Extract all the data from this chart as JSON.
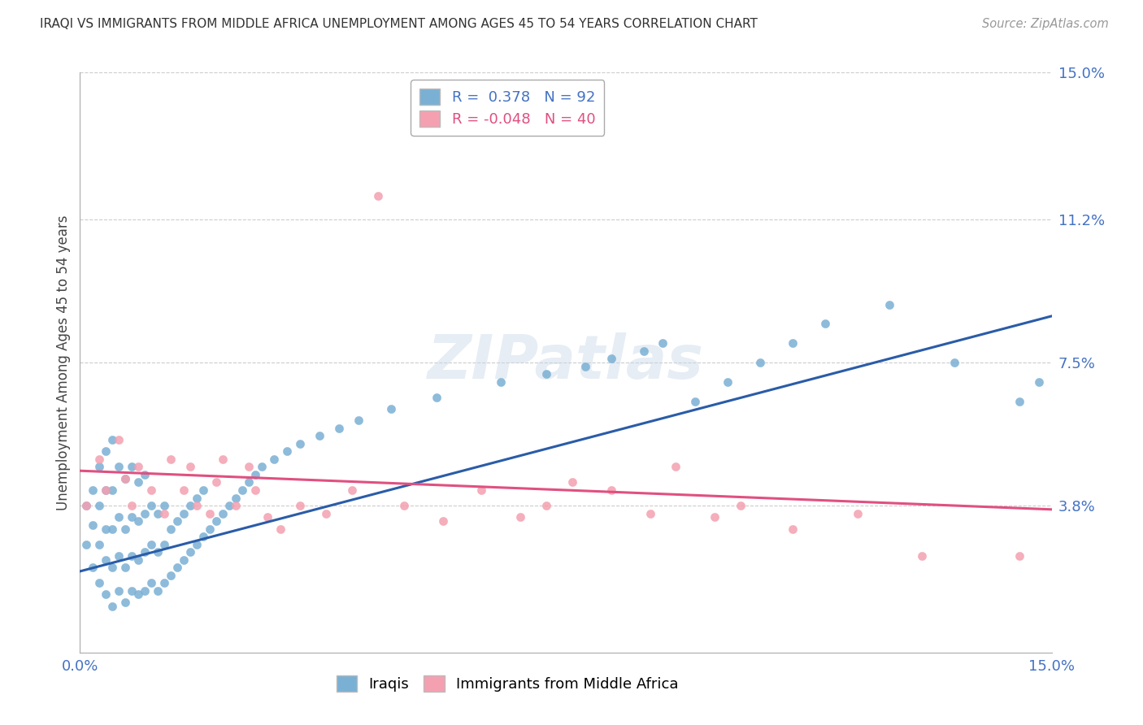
{
  "title": "IRAQI VS IMMIGRANTS FROM MIDDLE AFRICA UNEMPLOYMENT AMONG AGES 45 TO 54 YEARS CORRELATION CHART",
  "source": "Source: ZipAtlas.com",
  "ylabel": "Unemployment Among Ages 45 to 54 years",
  "xlim": [
    0.0,
    0.15
  ],
  "ylim": [
    0.0,
    0.15
  ],
  "ytick_values": [
    0.038,
    0.075,
    0.112,
    0.15
  ],
  "hgrid_values": [
    0.038,
    0.075,
    0.112,
    0.15
  ],
  "background_color": "#ffffff",
  "legend_iraqis": "Iraqis",
  "legend_immigrants": "Immigrants from Middle Africa",
  "r_iraqis": 0.378,
  "n_iraqis": 92,
  "r_immigrants": -0.048,
  "n_immigrants": 40,
  "iraqis_color": "#7ab0d4",
  "immigrants_color": "#f4a0b0",
  "iraqis_line_color": "#2a5ca8",
  "immigrants_line_color": "#e05080",
  "blue_line": [
    0.0,
    0.021,
    0.15,
    0.087
  ],
  "pink_line": [
    0.0,
    0.047,
    0.15,
    0.037
  ],
  "iraqis_x": [
    0.001,
    0.001,
    0.002,
    0.002,
    0.002,
    0.003,
    0.003,
    0.003,
    0.003,
    0.004,
    0.004,
    0.004,
    0.004,
    0.004,
    0.005,
    0.005,
    0.005,
    0.005,
    0.005,
    0.006,
    0.006,
    0.006,
    0.006,
    0.007,
    0.007,
    0.007,
    0.007,
    0.008,
    0.008,
    0.008,
    0.008,
    0.009,
    0.009,
    0.009,
    0.009,
    0.01,
    0.01,
    0.01,
    0.01,
    0.011,
    0.011,
    0.011,
    0.012,
    0.012,
    0.012,
    0.013,
    0.013,
    0.013,
    0.014,
    0.014,
    0.015,
    0.015,
    0.016,
    0.016,
    0.017,
    0.017,
    0.018,
    0.018,
    0.019,
    0.019,
    0.02,
    0.021,
    0.022,
    0.023,
    0.024,
    0.025,
    0.026,
    0.027,
    0.028,
    0.03,
    0.032,
    0.034,
    0.037,
    0.04,
    0.043,
    0.048,
    0.055,
    0.065,
    0.072,
    0.078,
    0.082,
    0.087,
    0.09,
    0.095,
    0.1,
    0.105,
    0.11,
    0.115,
    0.125,
    0.135,
    0.145,
    0.148
  ],
  "iraqis_y": [
    0.028,
    0.038,
    0.022,
    0.033,
    0.042,
    0.018,
    0.028,
    0.038,
    0.048,
    0.015,
    0.024,
    0.032,
    0.042,
    0.052,
    0.012,
    0.022,
    0.032,
    0.042,
    0.055,
    0.016,
    0.025,
    0.035,
    0.048,
    0.013,
    0.022,
    0.032,
    0.045,
    0.016,
    0.025,
    0.035,
    0.048,
    0.015,
    0.024,
    0.034,
    0.044,
    0.016,
    0.026,
    0.036,
    0.046,
    0.018,
    0.028,
    0.038,
    0.016,
    0.026,
    0.036,
    0.018,
    0.028,
    0.038,
    0.02,
    0.032,
    0.022,
    0.034,
    0.024,
    0.036,
    0.026,
    0.038,
    0.028,
    0.04,
    0.03,
    0.042,
    0.032,
    0.034,
    0.036,
    0.038,
    0.04,
    0.042,
    0.044,
    0.046,
    0.048,
    0.05,
    0.052,
    0.054,
    0.056,
    0.058,
    0.06,
    0.063,
    0.066,
    0.07,
    0.072,
    0.074,
    0.076,
    0.078,
    0.08,
    0.065,
    0.07,
    0.075,
    0.08,
    0.085,
    0.09,
    0.075,
    0.065,
    0.07
  ],
  "immigrants_x": [
    0.001,
    0.003,
    0.004,
    0.006,
    0.007,
    0.008,
    0.009,
    0.011,
    0.013,
    0.014,
    0.016,
    0.017,
    0.018,
    0.02,
    0.021,
    0.022,
    0.024,
    0.026,
    0.027,
    0.029,
    0.031,
    0.034,
    0.038,
    0.042,
    0.046,
    0.05,
    0.056,
    0.062,
    0.068,
    0.072,
    0.076,
    0.082,
    0.088,
    0.092,
    0.098,
    0.102,
    0.11,
    0.12,
    0.13,
    0.145
  ],
  "immigrants_y": [
    0.038,
    0.05,
    0.042,
    0.055,
    0.045,
    0.038,
    0.048,
    0.042,
    0.036,
    0.05,
    0.042,
    0.048,
    0.038,
    0.036,
    0.044,
    0.05,
    0.038,
    0.048,
    0.042,
    0.035,
    0.032,
    0.038,
    0.036,
    0.042,
    0.118,
    0.038,
    0.034,
    0.042,
    0.035,
    0.038,
    0.044,
    0.042,
    0.036,
    0.048,
    0.035,
    0.038,
    0.032,
    0.036,
    0.025,
    0.025
  ]
}
